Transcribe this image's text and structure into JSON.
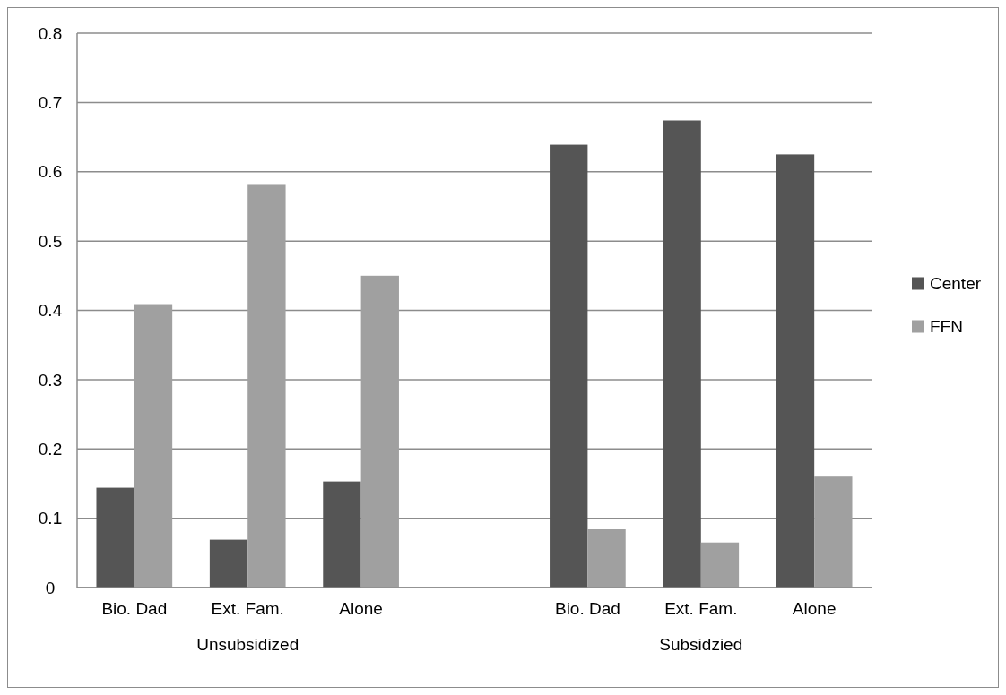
{
  "chart_data": {
    "type": "bar",
    "categories": [
      "Bio. Dad",
      "Ext. Fam.",
      "Alone",
      null,
      "Bio. Dad",
      "Ext. Fam.",
      "Alone"
    ],
    "series": [
      {
        "name": "Center",
        "color": "#555555",
        "values": [
          0.144,
          0.069,
          0.153,
          null,
          0.639,
          0.674,
          0.625
        ]
      },
      {
        "name": "FFN",
        "color": "#a0a0a0",
        "values": [
          0.409,
          0.581,
          0.45,
          null,
          0.084,
          0.065,
          0.16
        ]
      }
    ],
    "annotations": [
      "Unsubsidized",
      "Subsidzied"
    ],
    "ylim": [
      0,
      0.8
    ],
    "yticks": [
      0,
      0.1,
      0.2,
      0.3,
      0.4,
      0.5,
      0.6,
      0.7,
      0.8
    ],
    "grid": "y",
    "legend": "right"
  }
}
